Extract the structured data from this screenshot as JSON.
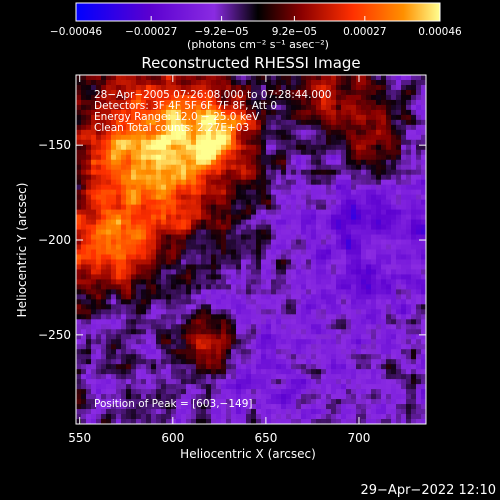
{
  "chart_data": {
    "type": "heatmap",
    "title": "Reconstructed RHESSI Image",
    "xlabel": "Heliocentric X (arcsec)",
    "ylabel": "Heliocentric Y (arcsec)",
    "xlim": [
      548,
      736
    ],
    "ylim": [
      -297,
      -113
    ],
    "xticks": [
      550,
      600,
      650,
      700
    ],
    "xtick_labels": [
      "550",
      "600",
      "650",
      "700"
    ],
    "yticks": [
      -150,
      -200,
      -250
    ],
    "ytick_labels": [
      "−150",
      "−200",
      "−250"
    ],
    "colorbar": {
      "range": [
        -0.00046,
        0.00046
      ],
      "ticks": [
        -0.00046,
        -0.00027,
        -9.2e-05,
        9.2e-05,
        0.00027,
        0.00046
      ],
      "tick_labels": [
        "−0.00046",
        "−0.00027",
        "−9.2e−05",
        "9.2e−05",
        "0.00027",
        "0.00046"
      ],
      "unit_label": "(photons cm⁻² s⁻¹ asec⁻²)",
      "colors": [
        "#0000ff",
        "#5a00d0",
        "#8a2be2",
        "#000000",
        "#8b0000",
        "#ff3000",
        "#ff9000",
        "#ffff80"
      ]
    },
    "annotations": [
      "28−Apr−2005 07:26:08.000 to 07:28:44.000",
      "Detectors: 3F 4F 5F 6F 7F 8F, Att 0",
      "Energy Range: 12.0 − 25.0 keV",
      "Clean    Total counts: 2.27E+03"
    ],
    "peak_text": "Position of Peak = [603,−149]",
    "peak": [
      603,
      -149
    ]
  },
  "timestamp": "29−Apr−2022 12:10"
}
